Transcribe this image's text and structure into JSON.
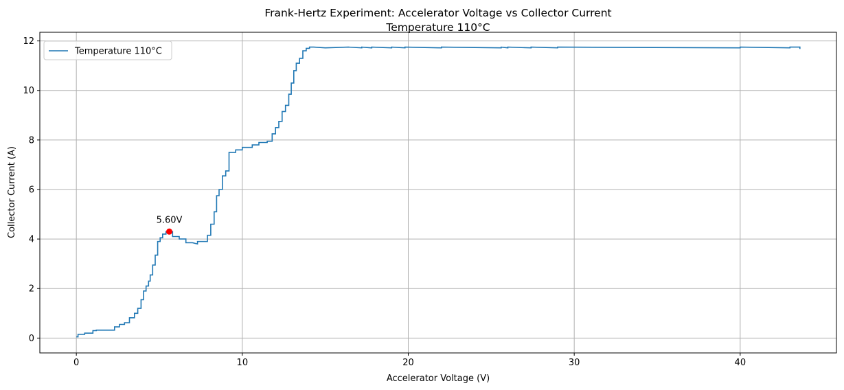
{
  "chart_data": {
    "type": "line",
    "title": "Frank-Hertz Experiment: Accelerator Voltage vs Collector Current",
    "subtitle": "Temperature 110°C",
    "xlabel": "Accelerator Voltage (V)",
    "ylabel": "Collector Current (A)",
    "xlim": [
      -2.2,
      45.8
    ],
    "ylim": [
      -0.6,
      12.35
    ],
    "xticks": [
      0,
      10,
      20,
      30,
      40
    ],
    "yticks": [
      0,
      2,
      4,
      6,
      8,
      10,
      12
    ],
    "grid": true,
    "legend_position": "top-left",
    "series": [
      {
        "name": "Temperature 110°C",
        "color": "#1f77b4",
        "x": [
          0.0,
          0.1,
          0.1,
          0.5,
          0.5,
          1.0,
          1.0,
          1.2,
          1.2,
          2.3,
          2.3,
          2.6,
          2.6,
          2.9,
          2.9,
          3.2,
          3.2,
          3.5,
          3.5,
          3.7,
          3.7,
          3.9,
          3.9,
          4.05,
          4.05,
          4.2,
          4.2,
          4.35,
          4.35,
          4.45,
          4.45,
          4.6,
          4.6,
          4.75,
          4.75,
          4.9,
          4.9,
          5.05,
          5.05,
          5.2,
          5.2,
          5.4,
          5.4,
          5.6,
          5.8,
          5.8,
          6.2,
          6.2,
          6.6,
          6.6,
          7.0,
          7.3,
          7.3,
          7.6,
          7.6,
          7.9,
          7.9,
          8.1,
          8.1,
          8.3,
          8.3,
          8.45,
          8.45,
          8.6,
          8.6,
          8.8,
          8.8,
          9.0,
          9.0,
          9.2,
          9.2,
          9.6,
          9.6,
          10.0,
          10.0,
          10.6,
          10.6,
          11.0,
          11.0,
          11.5,
          11.5,
          11.8,
          11.8,
          12.0,
          12.0,
          12.2,
          12.2,
          12.4,
          12.4,
          12.6,
          12.6,
          12.8,
          12.8,
          12.95,
          12.95,
          13.1,
          13.1,
          13.25,
          13.25,
          13.45,
          13.45,
          13.65,
          13.65,
          13.85,
          13.85,
          14.05,
          14.05,
          14.3,
          14.3,
          15.0,
          16.4,
          16.4,
          17.2,
          17.2,
          17.8,
          17.8,
          19.0,
          19.0,
          19.8,
          19.8,
          22.0,
          22.0,
          25.6,
          25.6,
          26.0,
          26.0,
          27.4,
          27.4,
          29.0,
          29.0,
          40.0,
          40.0,
          43.0,
          43.0,
          43.6,
          43.6
        ],
        "y": [
          0.05,
          0.05,
          0.15,
          0.15,
          0.2,
          0.2,
          0.3,
          0.3,
          0.32,
          0.32,
          0.45,
          0.45,
          0.55,
          0.55,
          0.62,
          0.62,
          0.82,
          0.82,
          1.0,
          1.0,
          1.2,
          1.2,
          1.55,
          1.55,
          1.9,
          1.9,
          2.1,
          2.1,
          2.3,
          2.3,
          2.55,
          2.55,
          2.95,
          2.95,
          3.35,
          3.35,
          3.9,
          3.9,
          4.05,
          4.05,
          4.2,
          4.2,
          4.3,
          4.3,
          4.3,
          4.1,
          4.1,
          4.0,
          4.0,
          3.85,
          3.85,
          3.8,
          3.9,
          3.9,
          3.9,
          3.9,
          4.15,
          4.15,
          4.6,
          4.6,
          5.1,
          5.1,
          5.75,
          5.75,
          6.0,
          6.0,
          6.55,
          6.55,
          6.75,
          6.75,
          7.5,
          7.5,
          7.6,
          7.6,
          7.7,
          7.7,
          7.8,
          7.8,
          7.9,
          7.9,
          7.95,
          7.95,
          8.25,
          8.25,
          8.5,
          8.5,
          8.75,
          8.75,
          9.15,
          9.15,
          9.4,
          9.4,
          9.85,
          9.85,
          10.3,
          10.3,
          10.8,
          10.8,
          11.1,
          11.1,
          11.3,
          11.3,
          11.6,
          11.6,
          11.7,
          11.7,
          11.75,
          11.75,
          11.75,
          11.72,
          11.75,
          11.75,
          11.72,
          11.75,
          11.72,
          11.75,
          11.72,
          11.75,
          11.72,
          11.75,
          11.72,
          11.75,
          11.72,
          11.75,
          11.72,
          11.75,
          11.72,
          11.75,
          11.72,
          11.75,
          11.72,
          11.75,
          11.72,
          11.75,
          11.75,
          11.68
        ]
      }
    ],
    "marker": {
      "x": 5.6,
      "y": 4.3,
      "color": "#ff0000",
      "label": "5.60V"
    }
  }
}
